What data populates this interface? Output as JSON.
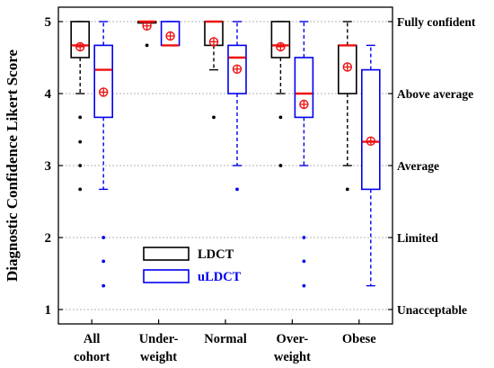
{
  "chart_data": {
    "type": "box",
    "ylabel": "Diagnostic Confidence Likert Score",
    "ylim": [
      0.8,
      5.2
    ],
    "yticks": [
      1,
      2,
      3,
      4,
      5
    ],
    "right_tick_labels": [
      {
        "value": 5,
        "label": "Fully confident"
      },
      {
        "value": 4,
        "label": "Above average"
      },
      {
        "value": 3,
        "label": "Average"
      },
      {
        "value": 2,
        "label": "Limited"
      },
      {
        "value": 1,
        "label": "Unacceptable"
      }
    ],
    "grid": "horizontal dashed",
    "legend": {
      "placement": "bottom-center",
      "entries": [
        {
          "name": "LDCT",
          "color": "#000000"
        },
        {
          "name": "uLDCT",
          "color": "#0000ee"
        }
      ]
    },
    "mean_color": "#ee1111",
    "median_color": "#ee1111",
    "categories": [
      {
        "label_lines": [
          "All",
          "cohort"
        ]
      },
      {
        "label_lines": [
          "Under-",
          "weight"
        ]
      },
      {
        "label_lines": [
          "Normal",
          ""
        ]
      },
      {
        "label_lines": [
          "Over-",
          "weight"
        ]
      },
      {
        "label_lines": [
          "Obese",
          ""
        ]
      }
    ],
    "series": [
      {
        "name": "LDCT",
        "color": "#000000",
        "boxes": [
          {
            "q1": 4.5,
            "median": 4.67,
            "q3": 5.0,
            "whisker_low": 4.0,
            "whisker_high": 5.0,
            "mean": 4.65,
            "outliers": [
              3.67,
              3.33,
              3.0,
              2.67
            ]
          },
          {
            "q1": 5.0,
            "median": 5.0,
            "q3": 5.0,
            "whisker_low": 5.0,
            "whisker_high": 5.0,
            "mean": 4.94,
            "outliers": [
              4.67
            ]
          },
          {
            "q1": 4.67,
            "median": 5.0,
            "q3": 5.0,
            "whisker_low": 4.33,
            "whisker_high": 5.0,
            "mean": 4.72,
            "outliers": [
              3.67
            ]
          },
          {
            "q1": 4.5,
            "median": 4.67,
            "q3": 5.0,
            "whisker_low": 4.0,
            "whisker_high": 5.0,
            "mean": 4.65,
            "outliers": [
              3.67,
              3.0
            ]
          },
          {
            "q1": 4.0,
            "median": 4.67,
            "q3": 4.67,
            "whisker_low": 3.0,
            "whisker_high": 5.0,
            "mean": 4.37,
            "outliers": [
              2.67
            ]
          }
        ]
      },
      {
        "name": "uLDCT",
        "color": "#0000ee",
        "boxes": [
          {
            "q1": 3.67,
            "median": 4.33,
            "q3": 4.67,
            "whisker_low": 2.67,
            "whisker_high": 5.0,
            "mean": 4.02,
            "outliers": [
              2.0,
              1.67,
              1.33
            ]
          },
          {
            "q1": 4.67,
            "median": 4.67,
            "q3": 5.0,
            "whisker_low": 4.67,
            "whisker_high": 5.0,
            "mean": 4.8,
            "outliers": []
          },
          {
            "q1": 4.0,
            "median": 4.5,
            "q3": 4.67,
            "whisker_low": 3.0,
            "whisker_high": 5.0,
            "mean": 4.34,
            "outliers": [
              2.67
            ]
          },
          {
            "q1": 3.67,
            "median": 4.0,
            "q3": 4.5,
            "whisker_low": 3.0,
            "whisker_high": 5.0,
            "mean": 3.85,
            "outliers": [
              2.0,
              1.67,
              1.33
            ]
          },
          {
            "q1": 2.67,
            "median": 3.33,
            "q3": 4.33,
            "whisker_low": 1.33,
            "whisker_high": 4.67,
            "mean": 3.34,
            "outliers": []
          }
        ]
      }
    ]
  }
}
